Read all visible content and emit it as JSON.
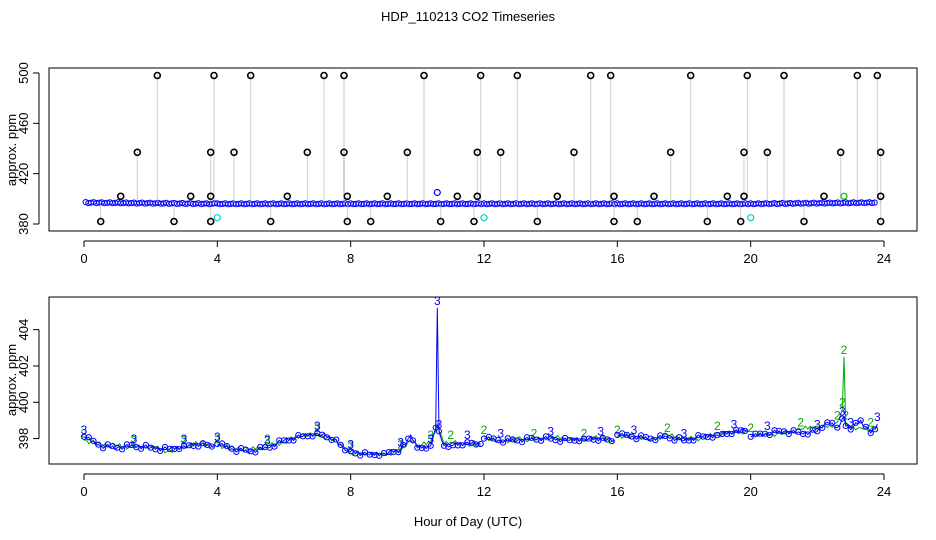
{
  "chart": {
    "title": "HDP_110213  CO2 Timeseries",
    "xlabel": "Hour of Day (UTC)"
  },
  "chart_data": [
    {
      "type": "scatter",
      "panel": "top",
      "ylabel": "approx. ppm",
      "xlim": [
        0,
        24
      ],
      "ylim": [
        380,
        500
      ],
      "xticks": [
        "0",
        "4",
        "8",
        "12",
        "16",
        "20",
        "24"
      ],
      "yticks": [
        "380",
        "420",
        "460",
        "500"
      ],
      "base_level": 397,
      "colors": {
        "primary": "#0000ff",
        "outlier": "#000000",
        "low": "#00cccc",
        "secondary": "#00bb00"
      },
      "series": [
        {
          "values": [
            {
              "x": 0.05,
              "y": 397
            },
            {
              "x": 4.0,
              "y": 396
            },
            {
              "x": 8.0,
              "y": 396
            },
            {
              "x": 12.0,
              "y": 396
            },
            {
              "x": 16.0,
              "y": 396
            },
            {
              "x": 20.0,
              "y": 396
            },
            {
              "x": 23.8,
              "y": 397
            }
          ]
        },
        {
          "values": [
            {
              "x": 2.2,
              "y": 498
            },
            {
              "x": 3.9,
              "y": 498
            },
            {
              "x": 5.0,
              "y": 498
            },
            {
              "x": 7.2,
              "y": 498
            },
            {
              "x": 7.8,
              "y": 498
            },
            {
              "x": 10.2,
              "y": 498
            },
            {
              "x": 11.9,
              "y": 498
            },
            {
              "x": 13.0,
              "y": 498
            },
            {
              "x": 15.2,
              "y": 498
            },
            {
              "x": 15.8,
              "y": 498
            },
            {
              "x": 18.2,
              "y": 498
            },
            {
              "x": 19.9,
              "y": 498
            },
            {
              "x": 21.0,
              "y": 498
            },
            {
              "x": 23.2,
              "y": 498
            },
            {
              "x": 23.8,
              "y": 498
            },
            {
              "x": 1.6,
              "y": 437
            },
            {
              "x": 3.8,
              "y": 437
            },
            {
              "x": 4.5,
              "y": 437
            },
            {
              "x": 6.7,
              "y": 437
            },
            {
              "x": 7.8,
              "y": 437
            },
            {
              "x": 9.7,
              "y": 437
            },
            {
              "x": 11.8,
              "y": 437
            },
            {
              "x": 12.5,
              "y": 437
            },
            {
              "x": 14.7,
              "y": 437
            },
            {
              "x": 17.6,
              "y": 437
            },
            {
              "x": 19.8,
              "y": 437
            },
            {
              "x": 20.5,
              "y": 437
            },
            {
              "x": 22.7,
              "y": 437
            },
            {
              "x": 23.9,
              "y": 437
            },
            {
              "x": 1.1,
              "y": 402
            },
            {
              "x": 3.2,
              "y": 402
            },
            {
              "x": 3.8,
              "y": 402
            },
            {
              "x": 6.1,
              "y": 402
            },
            {
              "x": 7.9,
              "y": 402
            },
            {
              "x": 9.1,
              "y": 402
            },
            {
              "x": 11.2,
              "y": 402
            },
            {
              "x": 11.8,
              "y": 402
            },
            {
              "x": 14.2,
              "y": 402
            },
            {
              "x": 15.9,
              "y": 402
            },
            {
              "x": 17.1,
              "y": 402
            },
            {
              "x": 19.3,
              "y": 402
            },
            {
              "x": 19.8,
              "y": 402
            },
            {
              "x": 22.2,
              "y": 402
            },
            {
              "x": 23.9,
              "y": 402
            },
            {
              "x": 0.5,
              "y": 382
            },
            {
              "x": 2.7,
              "y": 382
            },
            {
              "x": 3.8,
              "y": 382
            },
            {
              "x": 5.6,
              "y": 382
            },
            {
              "x": 7.9,
              "y": 382
            },
            {
              "x": 8.6,
              "y": 382
            },
            {
              "x": 10.7,
              "y": 382
            },
            {
              "x": 11.7,
              "y": 382
            },
            {
              "x": 13.6,
              "y": 382
            },
            {
              "x": 15.9,
              "y": 382
            },
            {
              "x": 16.6,
              "y": 382
            },
            {
              "x": 18.7,
              "y": 382
            },
            {
              "x": 19.7,
              "y": 382
            },
            {
              "x": 21.6,
              "y": 382
            },
            {
              "x": 23.9,
              "y": 382
            }
          ]
        },
        {
          "values": [
            {
              "x": 4.0,
              "y": 385
            },
            {
              "x": 12.0,
              "y": 385
            },
            {
              "x": 20.0,
              "y": 385
            }
          ]
        },
        {
          "values": [
            {
              "x": 10.6,
              "y": 405
            },
            {
              "x": 22.8,
              "y": 402
            }
          ]
        }
      ]
    },
    {
      "type": "line",
      "panel": "bottom",
      "ylabel": "approx. ppm",
      "xlim": [
        0,
        24
      ],
      "ylim": [
        396.6,
        405.8
      ],
      "xticks": [
        "0",
        "4",
        "8",
        "12",
        "16",
        "20",
        "24"
      ],
      "yticks": [
        "398",
        "400",
        "402",
        "404"
      ],
      "gaps_at": [
        3.95,
        11.95,
        15.95,
        19.95
      ],
      "series": [
        {
          "marker": "3",
          "color": "#0000ff",
          "x": [
            0.0,
            0.5,
            1.0,
            1.5,
            2.0,
            2.5,
            3.0,
            3.5,
            3.9,
            4.0,
            4.5,
            5.0,
            5.5,
            6.0,
            6.5,
            7.0,
            7.5,
            7.9,
            8.0,
            8.5,
            9.0,
            9.5,
            9.8,
            10.0,
            10.4,
            10.55,
            10.6,
            10.65,
            10.8,
            11.0,
            11.5,
            11.9,
            12.0,
            12.5,
            13.0,
            13.5,
            14.0,
            14.5,
            15.0,
            15.5,
            15.9,
            16.0,
            16.5,
            17.0,
            17.5,
            18.0,
            18.5,
            19.0,
            19.5,
            19.9,
            20.0,
            20.5,
            21.0,
            21.5,
            22.0,
            22.3,
            22.6,
            22.75,
            22.8,
            22.85,
            23.0,
            23.3,
            23.6,
            23.8
          ],
          "y": [
            398.1,
            397.6,
            397.5,
            397.6,
            397.5,
            397.4,
            397.6,
            397.7,
            397.6,
            397.7,
            397.4,
            397.3,
            397.5,
            397.9,
            398.1,
            398.3,
            398.0,
            397.3,
            397.3,
            397.1,
            397.2,
            397.4,
            398.2,
            397.5,
            397.6,
            398.6,
            405.2,
            398.4,
            397.6,
            397.6,
            397.8,
            397.7,
            398.0,
            397.9,
            397.9,
            398.0,
            398.0,
            397.9,
            398.0,
            398.0,
            397.9,
            398.2,
            398.1,
            398.0,
            398.1,
            397.9,
            398.1,
            398.2,
            398.4,
            398.5,
            398.1,
            398.3,
            398.4,
            398.3,
            398.4,
            398.9,
            398.6,
            399.1,
            399.2,
            398.7,
            398.5,
            399.0,
            398.3,
            398.8
          ]
        },
        {
          "marker": "2",
          "color": "#00aa00",
          "x": [
            0.0,
            0.5,
            1.0,
            1.5,
            2.0,
            2.5,
            3.0,
            3.5,
            3.9,
            4.0,
            4.5,
            5.0,
            5.5,
            6.0,
            6.5,
            7.0,
            7.5,
            7.9,
            8.0,
            8.5,
            9.0,
            9.5,
            9.8,
            10.0,
            10.4,
            10.6,
            10.8,
            11.0,
            11.5,
            11.9,
            12.0,
            12.5,
            13.0,
            13.5,
            14.0,
            14.5,
            15.0,
            15.5,
            15.9,
            16.0,
            16.5,
            17.0,
            17.5,
            18.0,
            18.5,
            19.0,
            19.5,
            19.9,
            20.0,
            20.5,
            21.0,
            21.5,
            22.0,
            22.3,
            22.6,
            22.75,
            22.8,
            22.85,
            23.0,
            23.3,
            23.6,
            23.8
          ],
          "y": [
            397.9,
            397.7,
            397.6,
            397.5,
            397.6,
            397.3,
            397.5,
            397.8,
            397.5,
            397.6,
            397.5,
            397.4,
            397.6,
            397.8,
            398.2,
            398.2,
            397.9,
            397.4,
            397.2,
            397.2,
            397.1,
            397.3,
            397.9,
            397.6,
            397.8,
            398.8,
            397.7,
            397.8,
            397.7,
            397.6,
            398.1,
            397.8,
            398.0,
            397.9,
            398.1,
            398.0,
            397.9,
            398.1,
            397.8,
            398.1,
            398.2,
            397.9,
            398.2,
            398.0,
            398.0,
            398.3,
            398.3,
            398.4,
            398.2,
            398.2,
            398.3,
            398.5,
            398.7,
            398.6,
            398.9,
            399.6,
            402.5,
            398.9,
            398.6,
            398.6,
            398.5,
            398.7
          ]
        }
      ]
    }
  ]
}
